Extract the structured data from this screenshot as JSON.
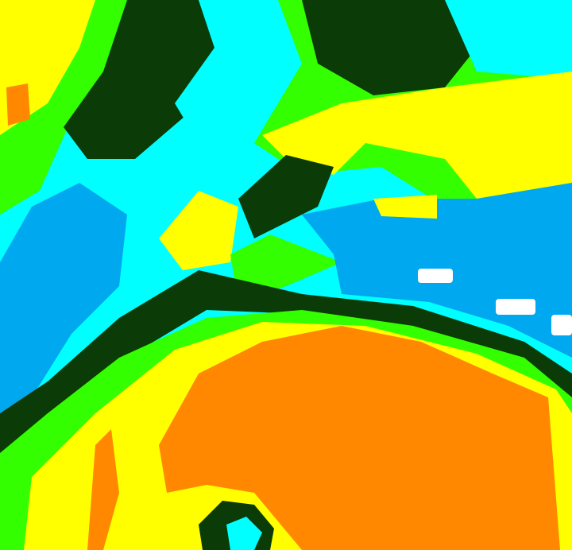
{
  "image": {
    "palette": {
      "dark_green": "#0b3b07",
      "green": "#33ff00",
      "yellow": "#ffff00",
      "cyan": "#00ffff",
      "blue": "#00a8f0",
      "orange": "#ff8800",
      "white": "#ffffff"
    }
  }
}
